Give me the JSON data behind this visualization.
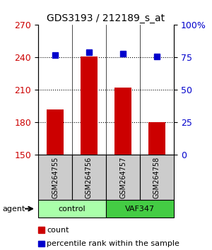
{
  "title": "GDS3193 / 212189_s_at",
  "samples": [
    "GSM264755",
    "GSM264756",
    "GSM264757",
    "GSM264758"
  ],
  "counts": [
    192,
    241,
    212,
    180
  ],
  "percentiles": [
    77,
    79,
    78,
    76
  ],
  "ylim_left": [
    150,
    270
  ],
  "ylim_right": [
    0,
    100
  ],
  "yticks_left": [
    150,
    180,
    210,
    240,
    270
  ],
  "yticks_right": [
    0,
    25,
    50,
    75,
    100
  ],
  "yticklabels_right": [
    "0",
    "25",
    "50",
    "75",
    "100%"
  ],
  "bar_color": "#cc0000",
  "dot_color": "#0000cc",
  "groups": [
    {
      "label": "control",
      "indices": [
        0,
        1
      ],
      "color": "#aaffaa"
    },
    {
      "label": "VAF347",
      "indices": [
        2,
        3
      ],
      "color": "#44cc44"
    }
  ],
  "group_row_color": "#cccccc",
  "agent_label": "agent",
  "legend_count_label": "count",
  "legend_pct_label": "percentile rank within the sample",
  "bar_width": 0.5,
  "grid_color": "#000000",
  "background_color": "#ffffff"
}
